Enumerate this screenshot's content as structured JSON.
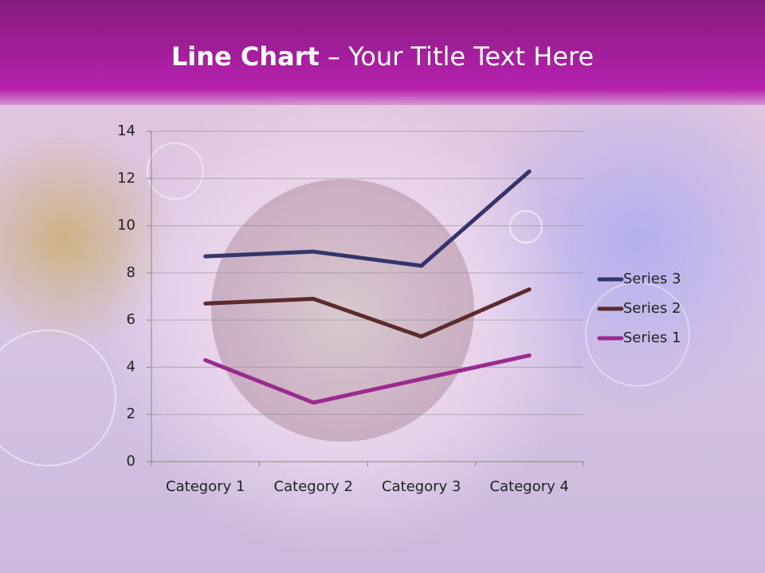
{
  "title_runs": [
    "Line Chart",
    " – Your Title Text Here"
  ],
  "chart_data": {
    "type": "line",
    "stacked": true,
    "categories": [
      "Category 1",
      "Category 2",
      "Category 3",
      "Category 4"
    ],
    "series": [
      {
        "name": "Series 1",
        "color": "#9a2a8e",
        "values": [
          4.3,
          2.5,
          3.5,
          4.5
        ]
      },
      {
        "name": "Series 2",
        "color": "#5b2b2e",
        "values": [
          2.4,
          4.4,
          1.8,
          2.8
        ]
      },
      {
        "name": "Series 3",
        "color": "#35356c",
        "values": [
          2,
          2,
          3,
          5
        ]
      }
    ],
    "ylim": [
      0,
      14
    ],
    "yticks": [
      0,
      2,
      4,
      6,
      8,
      10,
      12,
      14
    ],
    "grid": true,
    "legend": "right"
  }
}
